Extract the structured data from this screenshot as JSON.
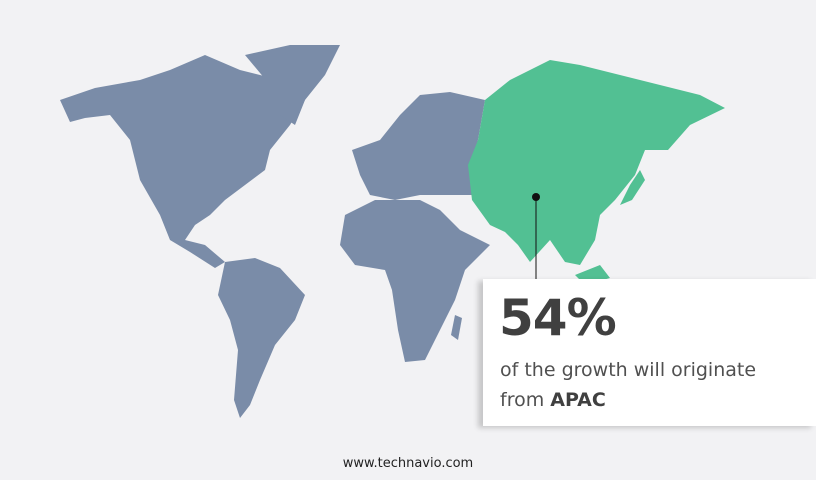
{
  "stat": {
    "value": "54%",
    "text": "of the growth will originate",
    "prefix": "from",
    "region": "APAC"
  },
  "map": {
    "highlighted_region": "APAC",
    "highlight_color": "#52c093",
    "base_color": "#7a8ca8",
    "background": "#f2f2f4"
  },
  "footer": {
    "url": "www.technavio.com"
  }
}
